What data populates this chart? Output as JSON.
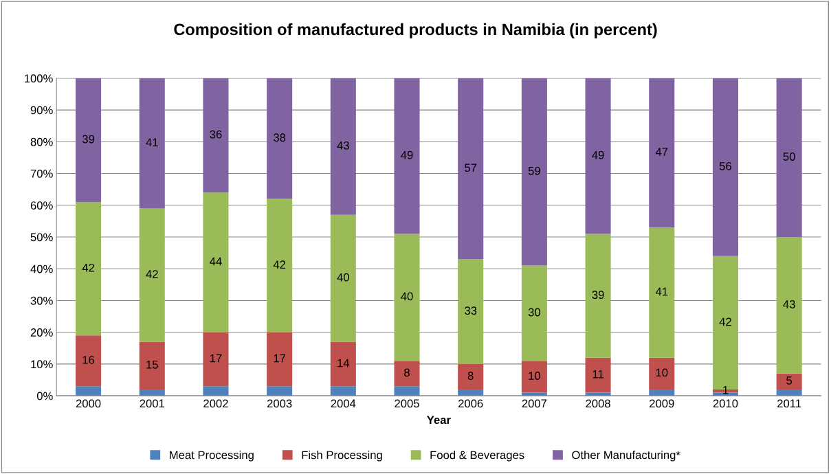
{
  "chart_data": {
    "type": "bar",
    "title": "Composition of manufactured products in Namibia (in percent)",
    "xlabel": "Year",
    "categories": [
      "2000",
      "2001",
      "2002",
      "2003",
      "2004",
      "2005",
      "2006",
      "2007",
      "2008",
      "2009",
      "2010",
      "2011"
    ],
    "stacked": true,
    "series": [
      {
        "name": "Meat Processing",
        "color": "#4f81bd",
        "values": [
          3,
          2,
          3,
          3,
          3,
          3,
          2,
          1,
          1,
          2,
          1,
          2
        ],
        "value_labels": [
          null,
          null,
          null,
          null,
          null,
          null,
          null,
          null,
          null,
          null,
          null,
          null
        ]
      },
      {
        "name": "Fish Processing",
        "color": "#c0504d",
        "values": [
          16,
          15,
          17,
          17,
          14,
          8,
          8,
          10,
          11,
          10,
          1,
          5
        ],
        "value_labels": [
          "16",
          "15",
          "17",
          "17",
          "14",
          "8",
          "8",
          "10",
          "11",
          "10",
          "1",
          "5"
        ]
      },
      {
        "name": "Food & Beverages",
        "color": "#9bbb59",
        "values": [
          42,
          42,
          44,
          42,
          40,
          40,
          33,
          30,
          39,
          41,
          42,
          43
        ],
        "value_labels": [
          "42",
          "42",
          "44",
          "42",
          "40",
          "40",
          "33",
          "30",
          "39",
          "41",
          "42",
          "43"
        ]
      },
      {
        "name": "Other Manufacturing*",
        "color": "#8064a2",
        "values": [
          39,
          41,
          36,
          38,
          43,
          49,
          57,
          59,
          49,
          47,
          56,
          50
        ],
        "value_labels": [
          "39",
          "41",
          "36",
          "38",
          "43",
          "49",
          "57",
          "59",
          "49",
          "47",
          "56",
          "50"
        ]
      }
    ],
    "ylim": [
      0,
      100
    ],
    "yticks": [
      {
        "value": 0,
        "label": "0%"
      },
      {
        "value": 10,
        "label": "10%"
      },
      {
        "value": 20,
        "label": "20%"
      },
      {
        "value": 30,
        "label": "30%"
      },
      {
        "value": 40,
        "label": "40%"
      },
      {
        "value": 50,
        "label": "50%"
      },
      {
        "value": 60,
        "label": "60%"
      },
      {
        "value": 70,
        "label": "70%"
      },
      {
        "value": 80,
        "label": "80%"
      },
      {
        "value": 90,
        "label": "90%"
      },
      {
        "value": 100,
        "label": "100%"
      }
    ],
    "grid": "y",
    "legend": "bottom"
  }
}
